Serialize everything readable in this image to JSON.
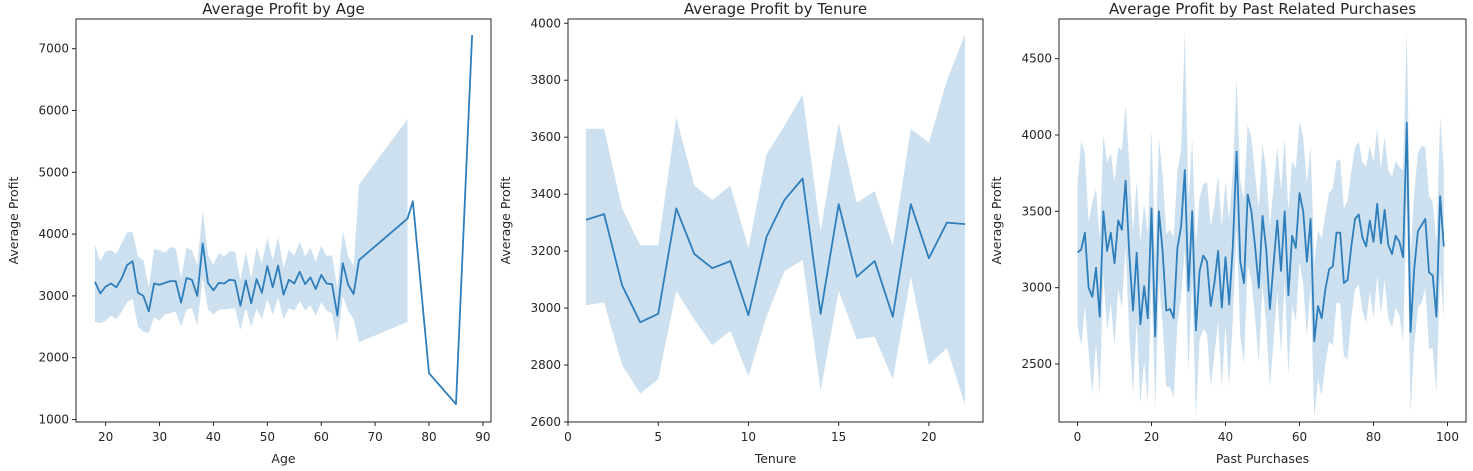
{
  "chart_data": [
    {
      "type": "line",
      "title": "Average Profit by Age",
      "xlabel": "Age",
      "ylabel": "Average Profit",
      "xlim": [
        14.5,
        91.5
      ],
      "ylim": [
        960,
        7480
      ],
      "xticks": [
        20,
        30,
        40,
        50,
        60,
        70,
        80,
        90
      ],
      "yticks": [
        1000,
        2000,
        3000,
        4000,
        5000,
        6000,
        7000
      ],
      "line_color": "#2e7ebc",
      "band_color": "#bcd6ea",
      "series": [
        {
          "x": [
            18,
            19,
            20,
            21,
            22,
            23,
            24,
            25,
            26,
            27,
            28,
            29,
            30,
            31,
            32,
            33,
            34,
            35,
            36,
            37,
            38,
            39,
            40,
            41,
            42,
            43,
            44,
            45,
            46,
            47,
            48,
            49,
            50,
            51,
            52,
            53,
            54,
            55,
            56,
            57,
            58,
            59,
            60,
            61,
            62,
            63,
            64,
            65,
            66,
            67,
            76,
            77,
            80,
            85,
            88
          ],
          "y": [
            3230,
            3040,
            3150,
            3200,
            3140,
            3290,
            3500,
            3560,
            3050,
            3000,
            2750,
            3200,
            3180,
            3210,
            3240,
            3240,
            2890,
            3290,
            3260,
            3000,
            3850,
            3210,
            3090,
            3210,
            3200,
            3260,
            3250,
            2840,
            3250,
            2880,
            3270,
            3050,
            3480,
            3140,
            3490,
            3020,
            3260,
            3200,
            3390,
            3190,
            3300,
            3110,
            3340,
            3200,
            3190,
            2680,
            3530,
            3180,
            3030,
            3580,
            4250,
            4530,
            1750,
            1250,
            7220
          ],
          "lower": [
            2580,
            2560,
            2600,
            2680,
            2620,
            2750,
            2900,
            2950,
            2500,
            2420,
            2400,
            2650,
            2600,
            2700,
            2720,
            2750,
            2500,
            2780,
            2800,
            2520,
            3300,
            2780,
            2700,
            2780,
            2780,
            2790,
            2800,
            2450,
            2800,
            2500,
            2800,
            2620,
            2950,
            2700,
            2980,
            2620,
            2800,
            2760,
            2920,
            2760,
            2850,
            2680,
            2900,
            2760,
            2720,
            2250,
            3000,
            2760,
            2620,
            2250,
            2580,
            null,
            null,
            null,
            null
          ],
          "upper": [
            3830,
            3560,
            3720,
            3740,
            3680,
            3860,
            4030,
            4030,
            3640,
            3580,
            3130,
            3760,
            3740,
            3700,
            3790,
            3770,
            3290,
            3780,
            3740,
            3500,
            4380,
            3660,
            3510,
            3690,
            3640,
            3720,
            3720,
            3250,
            3720,
            3280,
            3790,
            3520,
            3950,
            3580,
            3960,
            3450,
            3750,
            3650,
            3880,
            3640,
            3780,
            3550,
            3820,
            3640,
            3660,
            3120,
            4050,
            3640,
            3480,
            4800,
            5860,
            null,
            null,
            null,
            null
          ]
        }
      ]
    },
    {
      "type": "line",
      "title": "Average Profit by Tenure",
      "xlabel": "Tenure",
      "ylabel": "Average Profit",
      "xlim": [
        0,
        23
      ],
      "ylim": [
        2600,
        4015
      ],
      "xticks": [
        0,
        5,
        10,
        15,
        20
      ],
      "yticks": [
        2600,
        2800,
        3000,
        3200,
        3400,
        3600,
        3800,
        4000
      ],
      "line_color": "#2e7ebc",
      "band_color": "#bcd6ea",
      "series": [
        {
          "x": [
            1,
            2,
            3,
            4,
            5,
            6,
            7,
            8,
            9,
            10,
            11,
            12,
            13,
            14,
            15,
            16,
            17,
            18,
            19,
            20,
            21,
            22
          ],
          "y": [
            3310,
            3330,
            3080,
            2950,
            2980,
            3350,
            3190,
            3140,
            3165,
            2975,
            3250,
            3380,
            3455,
            2980,
            3365,
            3110,
            3165,
            2970,
            3365,
            3175,
            3300,
            3295
          ],
          "lower": [
            3010,
            3020,
            2800,
            2700,
            2750,
            3060,
            2960,
            2870,
            2920,
            2760,
            2970,
            3130,
            3170,
            2710,
            3060,
            2890,
            2900,
            2750,
            3110,
            2800,
            2860,
            2660
          ],
          "upper": [
            3630,
            3630,
            3350,
            3220,
            3220,
            3670,
            3430,
            3380,
            3430,
            3210,
            3540,
            3640,
            3750,
            3270,
            3650,
            3370,
            3410,
            3220,
            3630,
            3580,
            3800,
            3960
          ]
        }
      ]
    },
    {
      "type": "line",
      "title": "Average Profit by Past Related Purchases",
      "xlabel": "Past Purchases",
      "ylabel": "Average Profit",
      "xlim": [
        -5,
        105
      ],
      "ylim": [
        2120,
        4760
      ],
      "xticks": [
        0,
        20,
        40,
        60,
        80,
        100
      ],
      "yticks": [
        2500,
        3000,
        3500,
        4000,
        4500
      ],
      "line_color": "#2e7ebc",
      "band_color": "#bcd6ea",
      "series": [
        {
          "x": [
            0,
            1,
            2,
            3,
            4,
            5,
            6,
            7,
            8,
            9,
            10,
            11,
            12,
            13,
            14,
            15,
            16,
            17,
            18,
            19,
            20,
            21,
            22,
            23,
            24,
            25,
            26,
            27,
            28,
            29,
            30,
            31,
            32,
            33,
            34,
            35,
            36,
            37,
            38,
            39,
            40,
            41,
            42,
            43,
            44,
            45,
            46,
            47,
            48,
            49,
            50,
            51,
            52,
            53,
            54,
            55,
            56,
            57,
            58,
            59,
            60,
            61,
            62,
            63,
            64,
            65,
            66,
            67,
            68,
            69,
            70,
            71,
            72,
            73,
            74,
            75,
            76,
            77,
            78,
            79,
            80,
            81,
            82,
            83,
            84,
            85,
            86,
            87,
            88,
            89,
            90,
            91,
            92,
            93,
            94,
            95,
            96,
            97,
            98,
            99
          ],
          "y": [
            3230,
            3250,
            3360,
            3000,
            2940,
            3130,
            2810,
            3500,
            3240,
            3360,
            3160,
            3440,
            3380,
            3700,
            3220,
            2850,
            3230,
            2760,
            3010,
            2800,
            3520,
            2680,
            3500,
            3240,
            2850,
            2860,
            2800,
            3260,
            3400,
            3770,
            2980,
            3500,
            2720,
            3110,
            3210,
            3170,
            2880,
            3030,
            3240,
            2870,
            3200,
            2890,
            3280,
            3890,
            3170,
            3030,
            3610,
            3500,
            3270,
            3000,
            3470,
            3250,
            2860,
            3160,
            3440,
            3110,
            3500,
            2950,
            3340,
            3260,
            3620,
            3500,
            3170,
            3450,
            2650,
            2880,
            2800,
            2990,
            3120,
            3140,
            3360,
            3360,
            3030,
            3050,
            3270,
            3450,
            3480,
            3330,
            3270,
            3440,
            3300,
            3550,
            3290,
            3510,
            3280,
            3220,
            3340,
            3300,
            3200,
            4080,
            2710,
            3120,
            3370,
            3410,
            3450,
            3100,
            3080,
            2810,
            3600,
            3270
          ],
          "lower": [
            2750,
            2620,
            2880,
            2580,
            2300,
            2640,
            2300,
            3080,
            2720,
            2900,
            2620,
            2990,
            2870,
            3270,
            2680,
            2300,
            2780,
            2240,
            2520,
            2250,
            3050,
            2200,
            3050,
            2750,
            2350,
            2350,
            2280,
            2760,
            2940,
            3250,
            2450,
            3050,
            2150,
            2660,
            2730,
            2700,
            2350,
            2560,
            2780,
            2350,
            2750,
            2350,
            2800,
            3400,
            2680,
            2500,
            3150,
            3050,
            2800,
            2500,
            3020,
            2760,
            2350,
            2650,
            2980,
            2560,
            3050,
            2430,
            2880,
            2780,
            3170,
            3020,
            2680,
            3000,
            2150,
            2400,
            2290,
            2500,
            2650,
            2620,
            2900,
            2900,
            2550,
            2530,
            2800,
            2990,
            3020,
            2850,
            2770,
            2980,
            2800,
            3080,
            2830,
            3050,
            2800,
            2740,
            2870,
            2820,
            2650,
            3580,
            2180,
            2620,
            2870,
            2900,
            3000,
            2600,
            2600,
            2310,
            3100,
            2800
          ],
          "upper": [
            3680,
            3960,
            3880,
            3430,
            3560,
            3650,
            3320,
            4000,
            3820,
            3880,
            3690,
            3920,
            3900,
            4200,
            3800,
            3370,
            3700,
            3300,
            3550,
            3350,
            4040,
            3200,
            3980,
            3740,
            3350,
            3380,
            3330,
            3770,
            3900,
            4680,
            3560,
            3980,
            3280,
            3590,
            3680,
            3690,
            3400,
            3540,
            3740,
            3400,
            3700,
            3440,
            3770,
            4370,
            3700,
            3580,
            4070,
            3980,
            3740,
            3520,
            3940,
            3770,
            3400,
            3660,
            3920,
            3640,
            3980,
            3500,
            3830,
            3780,
            4090,
            3990,
            3680,
            3930,
            3160,
            3380,
            3320,
            3480,
            3620,
            3650,
            3830,
            3840,
            3520,
            3570,
            3760,
            3920,
            3960,
            3820,
            3790,
            3930,
            3820,
            4050,
            3780,
            3990,
            3770,
            3730,
            3830,
            3790,
            3770,
            4680,
            3220,
            3620,
            3880,
            3930,
            3920,
            3600,
            3560,
            3290,
            4120,
            3780
          ]
        }
      ]
    }
  ]
}
